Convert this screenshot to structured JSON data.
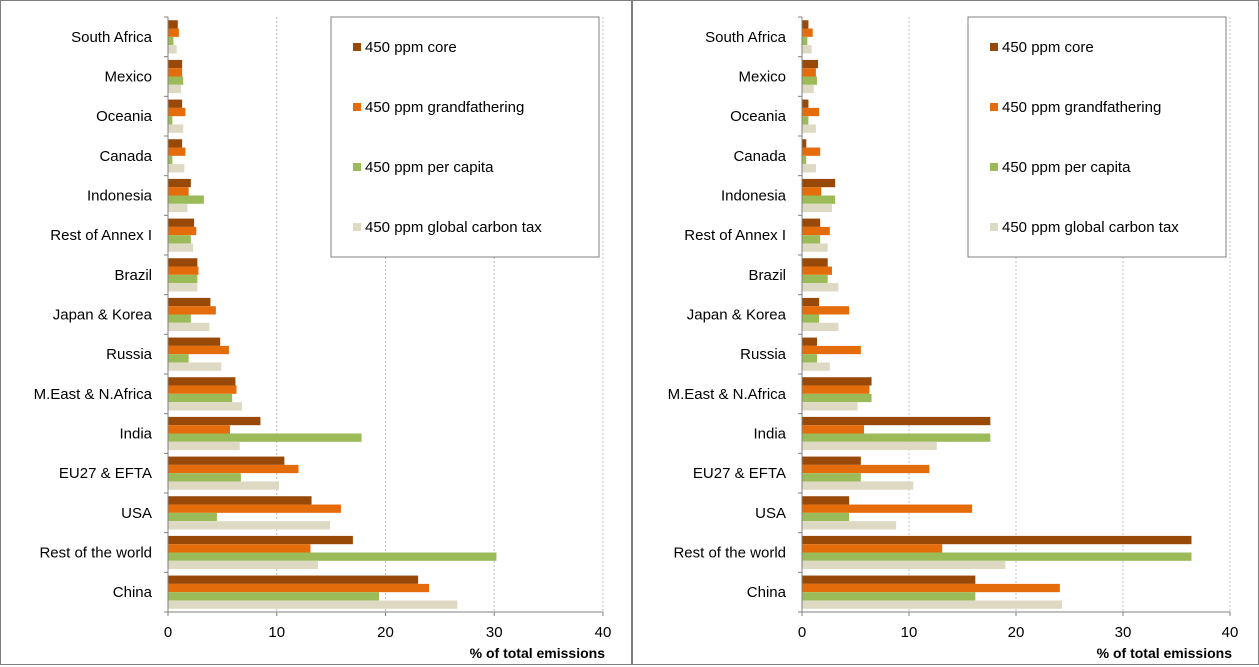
{
  "chart_data": [
    {
      "type": "bar",
      "orientation": "horizontal",
      "categories": [
        "South Africa",
        "Mexico",
        "Oceania",
        "Canada",
        "Indonesia",
        "Rest of Annex I",
        "Brazil",
        "Japan & Korea",
        "Russia",
        "M.East & N.Africa",
        "India",
        "EU27 & EFTA",
        "USA",
        "Rest of the world",
        "China"
      ],
      "series": [
        {
          "name": "450 ppm core",
          "color": "#984807",
          "values": [
            0.9,
            1.3,
            1.3,
            1.3,
            2.1,
            2.4,
            2.7,
            3.9,
            4.8,
            6.2,
            8.5,
            10.7,
            13.2,
            17.0,
            23.0
          ]
        },
        {
          "name": "450 ppm grandfathering",
          "color": "#E46C0A",
          "values": [
            1.0,
            1.3,
            1.6,
            1.6,
            1.9,
            2.6,
            2.8,
            4.4,
            5.6,
            6.3,
            5.7,
            12.0,
            15.9,
            13.1,
            24.0
          ]
        },
        {
          "name": "450 ppm per capita",
          "color": "#9BBB59",
          "values": [
            0.5,
            1.4,
            0.4,
            0.4,
            3.3,
            2.1,
            2.7,
            2.1,
            1.9,
            5.9,
            17.8,
            6.7,
            4.5,
            30.2,
            19.4
          ]
        },
        {
          "name": "450 ppm global carbon tax",
          "color": "#DDD9C3",
          "values": [
            0.8,
            1.2,
            1.4,
            1.5,
            1.8,
            2.3,
            2.7,
            3.8,
            4.9,
            6.8,
            6.6,
            10.2,
            14.9,
            13.8,
            26.6
          ]
        }
      ],
      "xlim": [
        0,
        40
      ],
      "xticks": [
        "0",
        "10",
        "20",
        "30",
        "40"
      ],
      "xlabel": "% of total emissions",
      "grid": "vertical dotted",
      "legend_position": "top-right"
    },
    {
      "type": "bar",
      "orientation": "horizontal",
      "categories": [
        "South Africa",
        "Mexico",
        "Oceania",
        "Canada",
        "Indonesia",
        "Rest of Annex I",
        "Brazil",
        "Japan & Korea",
        "Russia",
        "M.East & N.Africa",
        "India",
        "EU27 & EFTA",
        "USA",
        "Rest of the world",
        "China"
      ],
      "series": [
        {
          "name": "450 ppm core",
          "color": "#984807",
          "values": [
            0.6,
            1.5,
            0.6,
            0.4,
            3.1,
            1.7,
            2.4,
            1.6,
            1.4,
            6.5,
            17.6,
            5.5,
            4.4,
            36.4,
            16.2
          ]
        },
        {
          "name": "450 ppm grandfathering",
          "color": "#E46C0A",
          "values": [
            1.0,
            1.3,
            1.6,
            1.7,
            1.8,
            2.6,
            2.8,
            4.4,
            5.5,
            6.3,
            5.8,
            11.9,
            15.9,
            13.1,
            24.1
          ]
        },
        {
          "name": "450 ppm per capita",
          "color": "#9BBB59",
          "values": [
            0.5,
            1.4,
            0.6,
            0.4,
            3.1,
            1.7,
            2.4,
            1.6,
            1.4,
            6.5,
            17.6,
            5.5,
            4.4,
            36.4,
            16.2
          ]
        },
        {
          "name": "450 ppm global carbon tax",
          "color": "#DDD9C3",
          "values": [
            0.9,
            1.1,
            1.3,
            1.3,
            2.8,
            2.4,
            3.4,
            3.4,
            2.6,
            5.2,
            12.6,
            10.4,
            8.8,
            19.0,
            24.3
          ]
        }
      ],
      "xlim": [
        0,
        40
      ],
      "xticks": [
        "0",
        "10",
        "20",
        "30",
        "40"
      ],
      "xlabel": "% of total emissions",
      "grid": "vertical dotted",
      "legend_position": "top-right"
    }
  ]
}
